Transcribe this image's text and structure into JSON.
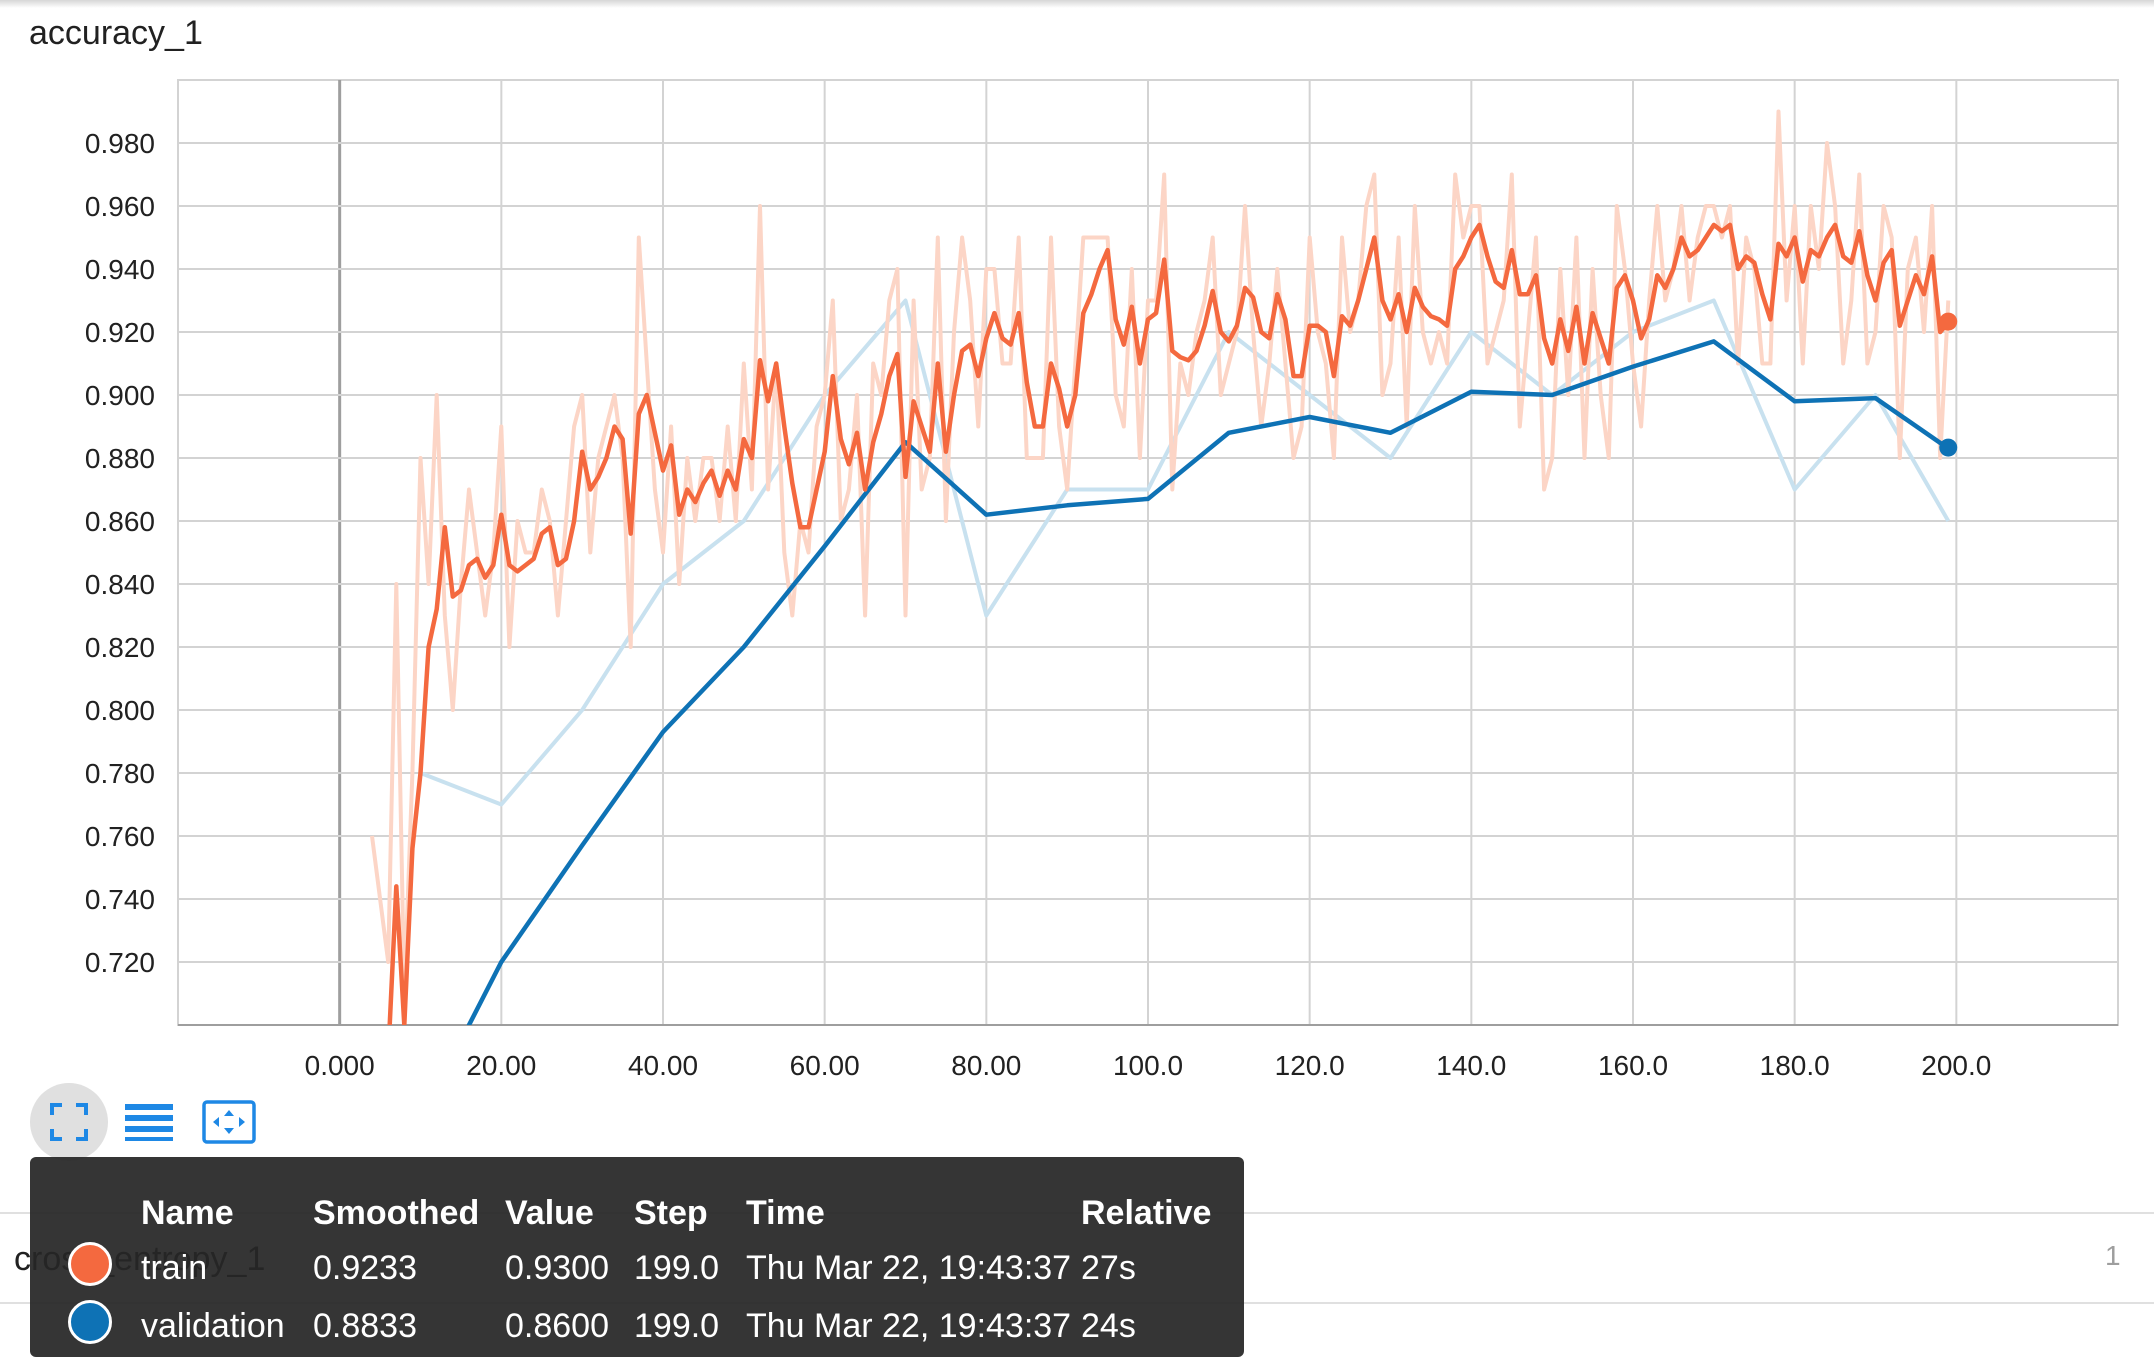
{
  "card": {
    "title": "accuracy_1"
  },
  "next_card": {
    "title": "cross_entropy_1",
    "page_number": "1"
  },
  "toolbar": {
    "buttons": [
      {
        "name": "fullscreen-button",
        "icon": "expand-icon"
      },
      {
        "name": "toggle-log-button",
        "icon": "lines-icon"
      },
      {
        "name": "fit-domain-button",
        "icon": "fit-domain-icon"
      }
    ]
  },
  "colors": {
    "train": "#f4693f",
    "train_raw": "#fcd5c6",
    "validation": "#0e72b5",
    "validation_raw": "#c8e1ef",
    "grid": "#d3d3d3"
  },
  "chart_data": {
    "type": "line",
    "title": "accuracy_1",
    "xlim": [
      -20,
      220
    ],
    "ylim": [
      0.7,
      1.0
    ],
    "x_ticks": [
      "0.000",
      "20.00",
      "40.00",
      "60.00",
      "80.00",
      "100.0",
      "120.0",
      "140.0",
      "160.0",
      "180.0",
      "200.0"
    ],
    "y_ticks": [
      "0.720",
      "0.740",
      "0.760",
      "0.780",
      "0.800",
      "0.820",
      "0.840",
      "0.860",
      "0.880",
      "0.900",
      "0.920",
      "0.940",
      "0.960",
      "0.980"
    ],
    "series": [
      {
        "name": "validation",
        "kind": "raw",
        "x": [
          10,
          20,
          30,
          40,
          50,
          60,
          70,
          80,
          90,
          100,
          110,
          120,
          130,
          140,
          150,
          160,
          170,
          180,
          190,
          199
        ],
        "y": [
          0.78,
          0.77,
          0.8,
          0.84,
          0.86,
          0.9,
          0.93,
          0.83,
          0.87,
          0.87,
          0.92,
          0.9,
          0.88,
          0.92,
          0.9,
          0.92,
          0.93,
          0.87,
          0.9,
          0.86
        ]
      },
      {
        "name": "validation",
        "kind": "smoothed",
        "x": [
          10,
          16,
          20,
          30,
          40,
          50,
          60,
          70,
          80,
          90,
          100,
          110,
          120,
          130,
          140,
          150,
          160,
          170,
          180,
          190,
          199
        ],
        "y": [
          0.62,
          0.7,
          0.72,
          0.757,
          0.793,
          0.82,
          0.852,
          0.885,
          0.862,
          0.865,
          0.867,
          0.888,
          0.893,
          0.888,
          0.901,
          0.9,
          0.909,
          0.917,
          0.898,
          0.899,
          0.883
        ]
      },
      {
        "name": "train",
        "kind": "smoothed",
        "x": [
          4,
          6,
          7,
          8,
          9,
          10,
          11,
          12,
          13,
          14,
          15,
          16,
          17,
          18,
          19,
          20,
          21,
          22,
          23,
          24,
          25,
          26,
          27,
          28,
          29,
          30,
          31,
          32,
          33,
          34,
          35,
          36,
          37,
          38,
          39,
          40,
          41,
          42,
          43,
          44,
          45,
          46,
          47,
          48,
          49,
          50,
          51,
          52,
          53,
          54,
          55,
          56,
          57,
          58,
          59,
          60,
          61,
          62,
          63,
          64,
          65,
          66,
          67,
          68,
          69,
          70,
          71,
          72,
          73,
          74,
          75,
          76,
          77,
          78,
          79,
          80,
          81,
          82,
          83,
          84,
          85,
          86,
          87,
          88,
          89,
          90,
          91,
          92,
          93,
          94,
          95,
          96,
          97,
          98,
          99,
          100,
          101,
          102,
          103,
          104,
          105,
          106,
          107,
          108,
          109,
          110,
          111,
          112,
          113,
          114,
          115,
          116,
          117,
          118,
          119,
          120,
          121,
          122,
          123,
          124,
          125,
          126,
          127,
          128,
          129,
          130,
          131,
          132,
          133,
          134,
          135,
          136,
          137,
          138,
          139,
          140,
          141,
          142,
          143,
          144,
          145,
          146,
          147,
          148,
          149,
          150,
          151,
          152,
          153,
          154,
          155,
          156,
          157,
          158,
          159,
          160,
          161,
          162,
          163,
          164,
          165,
          166,
          167,
          168,
          169,
          170,
          171,
          172,
          173,
          174,
          175,
          176,
          177,
          178,
          179,
          180,
          181,
          182,
          183,
          184,
          185,
          186,
          187,
          188,
          189,
          190,
          191,
          192,
          193,
          194,
          195,
          196,
          197,
          198,
          199
        ],
        "y": [
          0.69,
          0.69,
          0.744,
          0.7,
          0.756,
          0.78,
          0.82,
          0.832,
          0.858,
          0.836,
          0.838,
          0.846,
          0.848,
          0.842,
          0.846,
          0.862,
          0.846,
          0.844,
          0.846,
          0.848,
          0.856,
          0.858,
          0.846,
          0.848,
          0.86,
          0.882,
          0.87,
          0.874,
          0.88,
          0.89,
          0.886,
          0.856,
          0.894,
          0.9,
          0.888,
          0.876,
          0.884,
          0.862,
          0.87,
          0.866,
          0.872,
          0.876,
          0.868,
          0.876,
          0.87,
          0.886,
          0.88,
          0.911,
          0.898,
          0.91,
          0.89,
          0.872,
          0.858,
          0.858,
          0.87,
          0.882,
          0.906,
          0.886,
          0.878,
          0.888,
          0.87,
          0.885,
          0.894,
          0.906,
          0.913,
          0.874,
          0.898,
          0.89,
          0.882,
          0.91,
          0.882,
          0.9,
          0.914,
          0.916,
          0.906,
          0.918,
          0.926,
          0.918,
          0.916,
          0.926,
          0.904,
          0.89,
          0.89,
          0.91,
          0.902,
          0.89,
          0.9,
          0.926,
          0.932,
          0.94,
          0.946,
          0.924,
          0.916,
          0.928,
          0.91,
          0.924,
          0.926,
          0.943,
          0.914,
          0.912,
          0.911,
          0.914,
          0.922,
          0.933,
          0.92,
          0.917,
          0.922,
          0.934,
          0.931,
          0.92,
          0.918,
          0.932,
          0.924,
          0.906,
          0.906,
          0.922,
          0.922,
          0.92,
          0.906,
          0.925,
          0.922,
          0.93,
          0.94,
          0.95,
          0.93,
          0.924,
          0.932,
          0.92,
          0.934,
          0.928,
          0.925,
          0.924,
          0.922,
          0.94,
          0.944,
          0.95,
          0.954,
          0.944,
          0.936,
          0.934,
          0.946,
          0.932,
          0.932,
          0.938,
          0.918,
          0.91,
          0.924,
          0.914,
          0.928,
          0.91,
          0.926,
          0.918,
          0.91,
          0.934,
          0.938,
          0.93,
          0.918,
          0.924,
          0.938,
          0.934,
          0.94,
          0.95,
          0.944,
          0.946,
          0.95,
          0.954,
          0.952,
          0.954,
          0.94,
          0.944,
          0.942,
          0.932,
          0.924,
          0.948,
          0.944,
          0.95,
          0.936,
          0.946,
          0.944,
          0.95,
          0.954,
          0.944,
          0.942,
          0.952,
          0.938,
          0.93,
          0.942,
          0.946,
          0.922,
          0.93,
          0.938,
          0.932,
          0.944,
          0.92,
          0.923
        ]
      },
      {
        "name": "train",
        "kind": "raw",
        "x": [
          4,
          6,
          7,
          8,
          9,
          10,
          11,
          12,
          13,
          14,
          15,
          16,
          17,
          18,
          19,
          20,
          21,
          22,
          23,
          24,
          25,
          26,
          27,
          28,
          29,
          30,
          31,
          32,
          33,
          34,
          35,
          36,
          37,
          38,
          39,
          40,
          41,
          42,
          43,
          44,
          45,
          46,
          47,
          48,
          49,
          50,
          51,
          52,
          53,
          54,
          55,
          56,
          57,
          58,
          59,
          60,
          61,
          62,
          63,
          64,
          65,
          66,
          67,
          68,
          69,
          70,
          71,
          72,
          73,
          74,
          75,
          76,
          77,
          78,
          79,
          80,
          81,
          82,
          83,
          84,
          85,
          86,
          87,
          88,
          89,
          90,
          91,
          92,
          93,
          94,
          95,
          96,
          97,
          98,
          99,
          100,
          101,
          102,
          103,
          104,
          105,
          106,
          107,
          108,
          109,
          110,
          111,
          112,
          113,
          114,
          115,
          116,
          117,
          118,
          119,
          120,
          121,
          122,
          123,
          124,
          125,
          126,
          127,
          128,
          129,
          130,
          131,
          132,
          133,
          134,
          135,
          136,
          137,
          138,
          139,
          140,
          141,
          142,
          143,
          144,
          145,
          146,
          147,
          148,
          149,
          150,
          151,
          152,
          153,
          154,
          155,
          156,
          157,
          158,
          159,
          160,
          161,
          162,
          163,
          164,
          165,
          166,
          167,
          168,
          169,
          170,
          171,
          172,
          173,
          174,
          175,
          176,
          177,
          178,
          179,
          180,
          181,
          182,
          183,
          184,
          185,
          186,
          187,
          188,
          189,
          190,
          191,
          192,
          193,
          194,
          195,
          196,
          197,
          198,
          199
        ],
        "y": [
          0.76,
          0.72,
          0.84,
          0.71,
          0.78,
          0.88,
          0.84,
          0.9,
          0.83,
          0.8,
          0.84,
          0.87,
          0.85,
          0.83,
          0.85,
          0.89,
          0.82,
          0.86,
          0.85,
          0.85,
          0.87,
          0.86,
          0.83,
          0.86,
          0.89,
          0.9,
          0.85,
          0.88,
          0.89,
          0.9,
          0.88,
          0.82,
          0.95,
          0.91,
          0.87,
          0.85,
          0.89,
          0.84,
          0.88,
          0.86,
          0.88,
          0.88,
          0.86,
          0.89,
          0.86,
          0.91,
          0.87,
          0.96,
          0.87,
          0.91,
          0.85,
          0.83,
          0.86,
          0.85,
          0.89,
          0.9,
          0.93,
          0.86,
          0.87,
          0.9,
          0.83,
          0.91,
          0.9,
          0.93,
          0.94,
          0.83,
          0.93,
          0.87,
          0.88,
          0.95,
          0.86,
          0.92,
          0.95,
          0.93,
          0.89,
          0.94,
          0.94,
          0.91,
          0.91,
          0.95,
          0.88,
          0.88,
          0.88,
          0.95,
          0.89,
          0.87,
          0.91,
          0.95,
          0.95,
          0.95,
          0.95,
          0.9,
          0.89,
          0.94,
          0.88,
          0.93,
          0.93,
          0.97,
          0.87,
          0.91,
          0.9,
          0.92,
          0.93,
          0.95,
          0.9,
          0.91,
          0.92,
          0.96,
          0.92,
          0.89,
          0.91,
          0.94,
          0.91,
          0.88,
          0.89,
          0.95,
          0.92,
          0.91,
          0.88,
          0.95,
          0.92,
          0.93,
          0.96,
          0.97,
          0.9,
          0.91,
          0.95,
          0.89,
          0.96,
          0.92,
          0.91,
          0.92,
          0.91,
          0.97,
          0.95,
          0.96,
          0.96,
          0.91,
          0.92,
          0.93,
          0.97,
          0.89,
          0.92,
          0.95,
          0.87,
          0.88,
          0.94,
          0.9,
          0.95,
          0.88,
          0.94,
          0.9,
          0.88,
          0.96,
          0.94,
          0.91,
          0.89,
          0.93,
          0.96,
          0.93,
          0.94,
          0.96,
          0.93,
          0.95,
          0.96,
          0.96,
          0.95,
          0.96,
          0.91,
          0.95,
          0.94,
          0.91,
          0.91,
          0.99,
          0.93,
          0.96,
          0.91,
          0.96,
          0.94,
          0.98,
          0.96,
          0.91,
          0.93,
          0.97,
          0.91,
          0.92,
          0.96,
          0.95,
          0.88,
          0.94,
          0.95,
          0.92,
          0.96,
          0.88,
          0.93
        ]
      }
    ],
    "end_markers": [
      {
        "name": "train",
        "x": 199,
        "y": 0.9233
      },
      {
        "name": "validation",
        "x": 199,
        "y": 0.8833
      }
    ]
  },
  "tooltip": {
    "headers": [
      "Name",
      "Smoothed",
      "Value",
      "Step",
      "Time",
      "Relative"
    ],
    "rows": [
      {
        "name": "train",
        "smoothed": "0.9233",
        "value": "0.9300",
        "step": "199.0",
        "time": "Thu Mar 22, 19:43:37",
        "relative": "27s"
      },
      {
        "name": "validation",
        "smoothed": "0.8833",
        "value": "0.8600",
        "step": "199.0",
        "time": "Thu Mar 22, 19:43:37",
        "relative": "24s"
      }
    ]
  }
}
